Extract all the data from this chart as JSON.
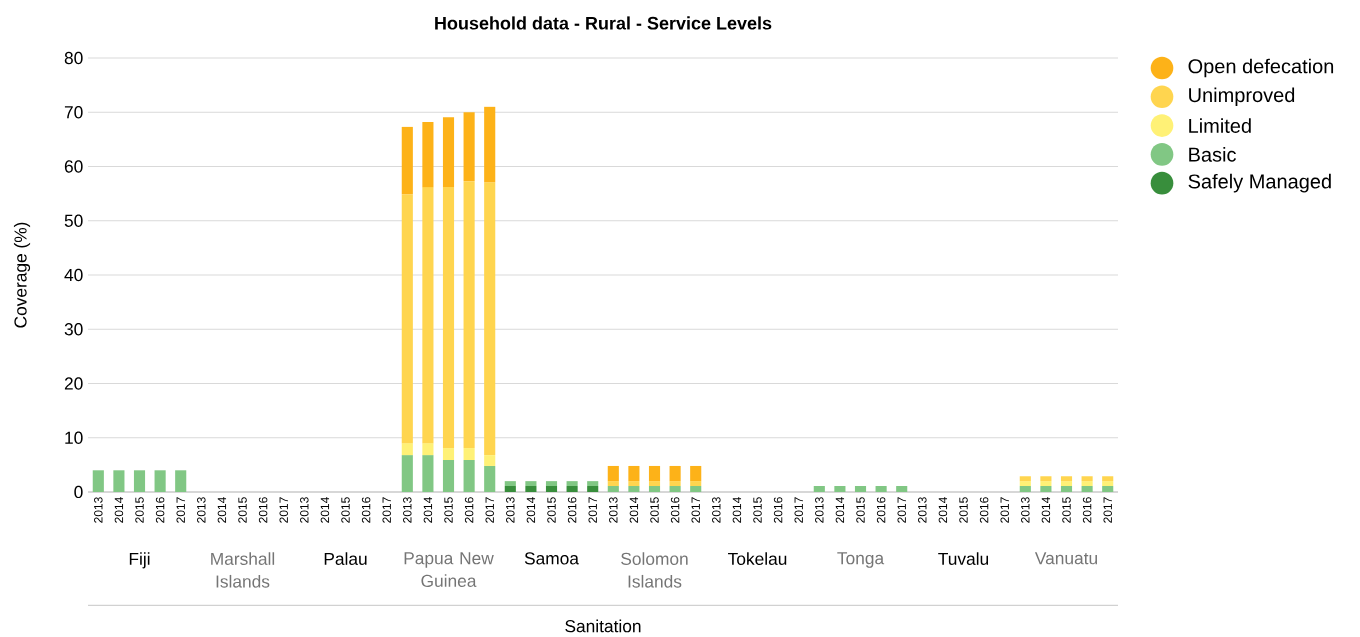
{
  "chart_data": {
    "type": "bar",
    "title": "Household data - Rural - Service Levels",
    "ylabel": "Coverage (%)",
    "categories": [
      "2013",
      "2014",
      "2015",
      "2016",
      "2017",
      "2013",
      "2014",
      "2015",
      "2016",
      "2017",
      "2013",
      "2014",
      "2015",
      "2016",
      "2017",
      "2013",
      "2014",
      "2015",
      "2016",
      "2017",
      "2013",
      "2014",
      "2015",
      "2016",
      "2017",
      "2013",
      "2014",
      "2015",
      "2016",
      "2017",
      "2013",
      "2014",
      "2015",
      "2016",
      "2017",
      "2013",
      "2014",
      "2015",
      "2016",
      "2017",
      "2013",
      "2014",
      "2015",
      "2016",
      "2017",
      "2013",
      "2014",
      "2015",
      "2016",
      "2017"
    ],
    "annotations": [
      "Fiji",
      "Marshall Islands",
      "Palau",
      "Papua New Guinea",
      "Samoa",
      "Solomon Islands",
      "Tokelau",
      "Tonga",
      "Tuvalu",
      "Vanuatu",
      "Sanitation"
    ],
    "stacked": true,
    "ylim": [
      0,
      80
    ],
    "yticks": [
      0,
      10,
      20,
      30,
      40,
      50,
      60,
      70,
      80
    ],
    "grid": "y",
    "legend": "right",
    "series": [
      {
        "name": "Safely Managed",
        "color": "#388e3c",
        "values": [
          null,
          null,
          null,
          null,
          null,
          null,
          null,
          null,
          null,
          null,
          null,
          null,
          null,
          null,
          null,
          null,
          null,
          null,
          null,
          null,
          1.1,
          1.1,
          1.1,
          1.1,
          1.1,
          null,
          null,
          null,
          null,
          null,
          null,
          null,
          null,
          null,
          null,
          null,
          null,
          null,
          null,
          null,
          null,
          null,
          null,
          null,
          null,
          null,
          null,
          null,
          null,
          null
        ]
      },
      {
        "name": "Basic",
        "color": "#81c784",
        "values": [
          4.0,
          4.0,
          4.0,
          4.0,
          4.0,
          null,
          null,
          null,
          null,
          null,
          null,
          null,
          null,
          null,
          null,
          6.8,
          6.8,
          5.9,
          5.9,
          4.8,
          0.9,
          0.9,
          0.9,
          0.9,
          0.9,
          1.1,
          1.1,
          1.1,
          1.1,
          1.1,
          null,
          null,
          null,
          null,
          null,
          1.1,
          1.1,
          1.1,
          1.1,
          1.1,
          null,
          null,
          null,
          null,
          null,
          1.1,
          1.1,
          1.1,
          1.1,
          1.1
        ]
      },
      {
        "name": "Limited",
        "color": "#fff176",
        "values": [
          null,
          null,
          null,
          null,
          null,
          null,
          null,
          null,
          null,
          null,
          null,
          null,
          null,
          null,
          null,
          2.2,
          2.2,
          2.2,
          2.2,
          2.0,
          null,
          null,
          null,
          null,
          null,
          null,
          null,
          null,
          null,
          null,
          null,
          null,
          null,
          null,
          null,
          null,
          null,
          null,
          null,
          null,
          null,
          null,
          null,
          null,
          null,
          0.9,
          0.9,
          0.9,
          0.9,
          0.9
        ]
      },
      {
        "name": "Unimproved",
        "color": "#ffd54f",
        "values": [
          null,
          null,
          null,
          null,
          null,
          null,
          null,
          null,
          null,
          null,
          null,
          null,
          null,
          null,
          null,
          45.9,
          47.2,
          48.1,
          49.2,
          50.3,
          null,
          null,
          null,
          null,
          null,
          0.9,
          0.9,
          0.9,
          0.9,
          0.9,
          null,
          null,
          null,
          null,
          null,
          null,
          null,
          null,
          null,
          null,
          null,
          null,
          null,
          null,
          null,
          0.9,
          0.9,
          0.9,
          0.9,
          0.9
        ]
      },
      {
        "name": "Open defecation",
        "color": "#fdb218",
        "values": [
          null,
          null,
          null,
          null,
          null,
          null,
          null,
          null,
          null,
          null,
          null,
          null,
          null,
          null,
          null,
          12.4,
          12.0,
          12.9,
          12.7,
          13.9,
          null,
          null,
          null,
          null,
          null,
          2.8,
          2.8,
          2.8,
          2.8,
          2.8,
          null,
          null,
          null,
          null,
          null,
          null,
          null,
          null,
          null,
          null,
          null,
          null,
          null,
          null,
          null,
          null,
          null,
          null,
          null,
          null
        ]
      }
    ]
  }
}
